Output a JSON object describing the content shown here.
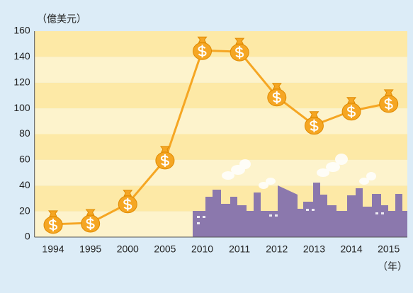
{
  "chart_data": {
    "type": "line",
    "y_label": "（億美元）",
    "x_label": "（年）",
    "categories": [
      "1994",
      "1995",
      "2000",
      "2005",
      "2010",
      "2011",
      "2012",
      "2013",
      "2014",
      "2015"
    ],
    "values": [
      10,
      11,
      26,
      60,
      145,
      144,
      109,
      87,
      98,
      104
    ],
    "color": "#f5a623",
    "ylim": [
      0,
      160
    ],
    "yticks": [
      0,
      20,
      40,
      60,
      80,
      100,
      120,
      140,
      160
    ],
    "grid": true
  }
}
